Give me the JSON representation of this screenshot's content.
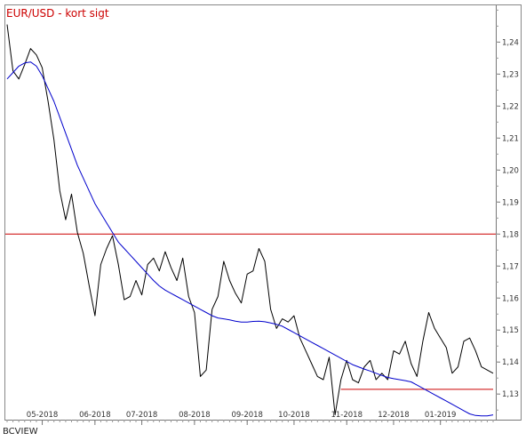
{
  "chart_data": {
    "type": "line",
    "title": "EUR/USD - kort sigt",
    "source": "BCVIEW",
    "ylim": [
      1.122,
      1.2515
    ],
    "y_ticks": [
      "1,13",
      "1,14",
      "1,15",
      "1,16",
      "1,17",
      "1,18",
      "1,19",
      "1,20",
      "1,21",
      "1,22",
      "1,23",
      "1,24"
    ],
    "x_ticks": [
      {
        "label": "05-2018",
        "week": 6
      },
      {
        "label": "06-2018",
        "week": 15
      },
      {
        "label": "07-2018",
        "week": 23
      },
      {
        "label": "08-2018",
        "week": 32
      },
      {
        "label": "09-2018",
        "week": 41
      },
      {
        "label": "10-2018",
        "week": 49
      },
      {
        "label": "11-2018",
        "week": 58
      },
      {
        "label": "12-2018",
        "week": 66
      },
      {
        "label": "01-2019",
        "week": 74
      }
    ],
    "x_range": [
      0,
      83
    ],
    "series": [
      {
        "color": "#000000",
        "values": [
          1.2455,
          1.231,
          1.2285,
          1.233,
          1.238,
          1.236,
          1.232,
          1.2215,
          1.2095,
          1.1935,
          1.1845,
          1.1925,
          1.1805,
          1.174,
          1.164,
          1.1545,
          1.1705,
          1.1755,
          1.1795,
          1.1705,
          1.1595,
          1.1605,
          1.1655,
          1.161,
          1.1705,
          1.1725,
          1.1685,
          1.1745,
          1.1695,
          1.1655,
          1.1725,
          1.1605,
          1.1555,
          1.1355,
          1.1375,
          1.1565,
          1.1605,
          1.1715,
          1.1655,
          1.1615,
          1.1585,
          1.1675,
          1.1685,
          1.1755,
          1.1715,
          1.1565,
          1.1505,
          1.1535,
          1.1525,
          1.1545,
          1.1475,
          1.1435,
          1.1395,
          1.1355,
          1.1345,
          1.1415,
          1.1235,
          1.1345,
          1.1405,
          1.1345,
          1.1335,
          1.1385,
          1.1405,
          1.1345,
          1.1365,
          1.1345,
          1.1435,
          1.1425,
          1.1465,
          1.1395,
          1.1355,
          1.1465,
          1.1555,
          1.1505,
          1.1475,
          1.1445,
          1.1365,
          1.1385,
          1.1465,
          1.1475,
          1.1435,
          1.1385,
          1.1375,
          1.1365
        ]
      },
      {
        "color": "#0000cc",
        "values": [
          1.2285,
          1.2305,
          1.2325,
          1.2335,
          1.2338,
          1.2325,
          1.2295,
          1.2255,
          1.2215,
          1.2165,
          1.2115,
          1.2065,
          1.2015,
          1.1975,
          1.1935,
          1.1895,
          1.1865,
          1.1835,
          1.1805,
          1.1775,
          1.1755,
          1.1735,
          1.1715,
          1.1695,
          1.1675,
          1.1655,
          1.1638,
          1.1625,
          1.1615,
          1.1605,
          1.1595,
          1.1585,
          1.1575,
          1.1565,
          1.1555,
          1.1545,
          1.1538,
          1.1535,
          1.1532,
          1.1528,
          1.1525,
          1.1525,
          1.1527,
          1.1528,
          1.1526,
          1.1522,
          1.1518,
          1.1512,
          1.1502,
          1.1492,
          1.1482,
          1.1472,
          1.1462,
          1.1452,
          1.1442,
          1.1432,
          1.1422,
          1.1412,
          1.1402,
          1.1392,
          1.1385,
          1.1378,
          1.1372,
          1.1365,
          1.1358,
          1.1352,
          1.1348,
          1.1345,
          1.1342,
          1.1338,
          1.1328,
          1.1318,
          1.1308,
          1.1298,
          1.1288,
          1.1278,
          1.1268,
          1.1258,
          1.1248,
          1.1238,
          1.1233,
          1.1232,
          1.1232,
          1.1235
        ]
      }
    ],
    "hlines": [
      {
        "value": 1.18,
        "color": "#cc0000",
        "full_width": true
      },
      {
        "value": 1.1315,
        "color": "#cc0000",
        "from_week": 57,
        "to_week": 83
      }
    ]
  }
}
